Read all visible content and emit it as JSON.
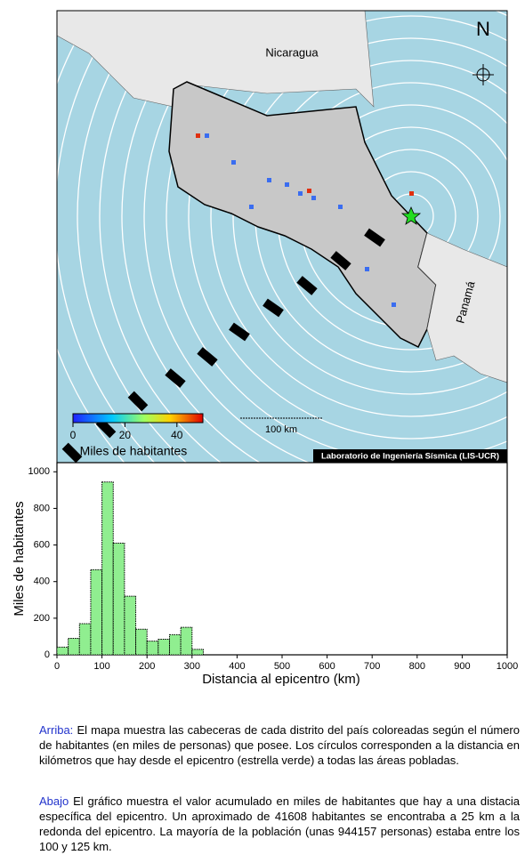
{
  "map": {
    "north": "N",
    "country_north": "Nicaragua",
    "country_east": "Panamá",
    "scale_label": "100 km",
    "credit": "Laboratorio de Ingeniería Sísmica (LIS-UCR)",
    "colorbar": {
      "lim": [
        0,
        50
      ],
      "ticks": [
        0,
        20,
        40
      ],
      "label": "Miles de habitantes"
    }
  },
  "chart_data": {
    "type": "histogram",
    "xlabel": "Distancia al epicentro (km)",
    "ylabel": "Miles de habitantes",
    "bins": [
      0,
      25,
      50,
      75,
      100,
      125,
      150,
      175,
      200,
      225,
      250,
      275,
      300,
      325
    ],
    "values": [
      42,
      90,
      170,
      465,
      944,
      610,
      320,
      140,
      75,
      85,
      110,
      150,
      30
    ],
    "color": "#90ee90",
    "xlim": [
      0,
      1000
    ],
    "xticks": [
      0,
      100,
      200,
      300,
      400,
      500,
      600,
      700,
      800,
      900,
      1000
    ],
    "ylim": [
      0,
      1050
    ],
    "yticks": [
      0,
      200,
      400,
      600,
      800,
      1000
    ]
  },
  "text": [
    {
      "lead": "Arriba:",
      "body": "El mapa muestra las cabeceras de cada distrito del país coloreadas según el número de habitantes (en miles de personas) que posee.  Los círculos corresponden a la distancia en kilómetros que hay desde el epicentro (estrella verde) a todas las áreas pobladas."
    },
    {
      "lead": "Abajo",
      "body": "El gráfico muestra el valor acumulado en miles de habitantes que hay a una distacia específica del epicentro.  Un aproximado de 41608 habitantes se encontraba a 25 km a la redonda del epicentro.  La mayoría de la población (unas 944157 personas) estaba entre los 100 y 125 km."
    }
  ]
}
